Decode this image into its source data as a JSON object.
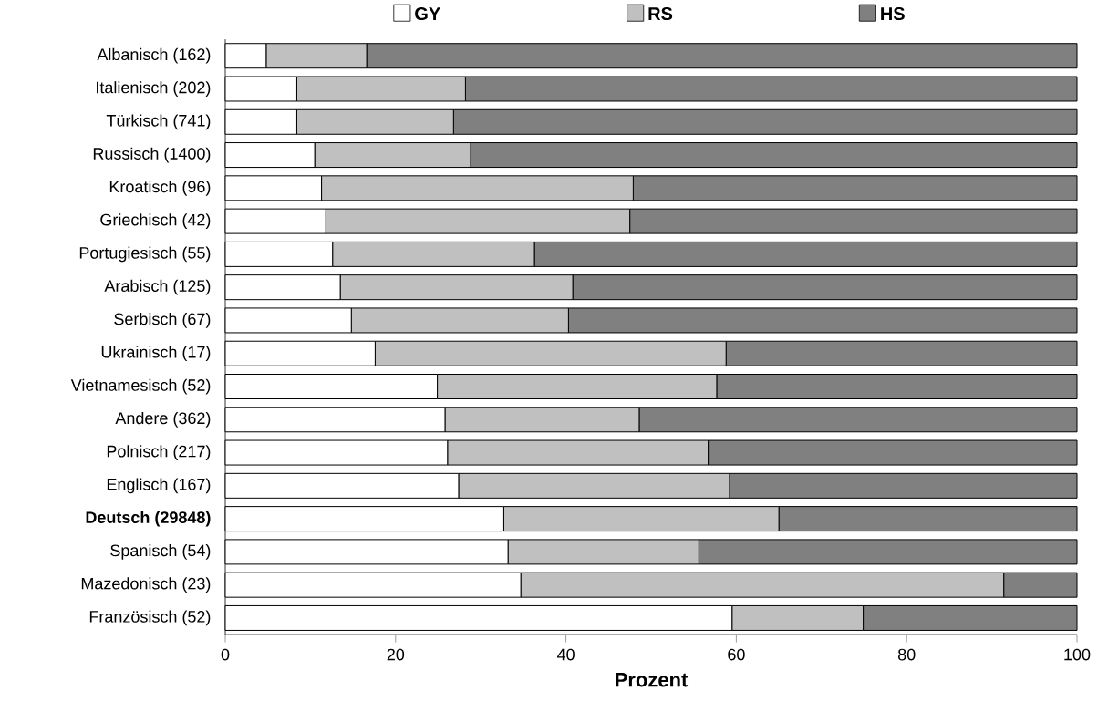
{
  "chart_data": {
    "type": "bar",
    "orientation": "horizontal",
    "stacked": true,
    "xlabel": "Prozent",
    "categories": [
      "Albanisch (162)",
      "Italienisch (202)",
      "Türkisch (741)",
      "Russisch (1400)",
      "Kroatisch (96)",
      "Griechisch (42)",
      "Portugiesisch (55)",
      "Arabisch (125)",
      "Serbisch (67)",
      "Ukrainisch (17)",
      "Vietnamesisch (52)",
      "Andere (362)",
      "Polnisch (217)",
      "Englisch (167)",
      "**Deutsch (29848)**",
      "Spanisch (54)",
      "Mazedonisch (23)",
      "Französisch (52)"
    ],
    "series": [
      {
        "name": "GY",
        "color": "#ffffff",
        "values": [
          4.8,
          8.4,
          8.4,
          10.5,
          11.3,
          11.8,
          12.6,
          13.5,
          14.8,
          17.6,
          24.9,
          25.8,
          26.1,
          27.4,
          32.7,
          33.2,
          34.7,
          59.5
        ]
      },
      {
        "name": "RS",
        "color": "#c0c0c0",
        "values": [
          11.8,
          19.8,
          18.4,
          18.3,
          36.6,
          35.7,
          23.7,
          27.3,
          25.5,
          41.2,
          32.8,
          22.8,
          30.6,
          31.8,
          32.3,
          22.4,
          56.7,
          15.4
        ]
      },
      {
        "name": "HS",
        "color": "#808080",
        "values": [
          83.4,
          71.8,
          73.2,
          71.2,
          52.1,
          52.5,
          63.7,
          59.2,
          59.7,
          41.2,
          42.3,
          51.4,
          43.3,
          40.8,
          35.0,
          44.4,
          8.6,
          25.1
        ]
      }
    ],
    "xlim": [
      0,
      100
    ],
    "xticks": [
      0,
      20,
      40,
      60,
      80,
      100
    ],
    "legend": "top",
    "grid": false
  }
}
